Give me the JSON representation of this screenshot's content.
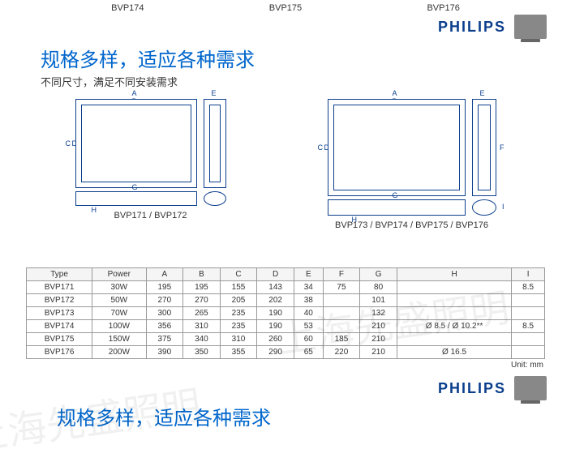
{
  "top_labels": [
    "BVP174",
    "BVP175",
    "BVP176"
  ],
  "brand": "PHILIPS",
  "headline": "规格多样，适应各种需求",
  "subhead": "不同尺寸，满足不同安装需求",
  "diagram_left_caption": "BVP171 / BVP172",
  "diagram_right_caption": "BVP173 / BVP174 / BVP175 / BVP176",
  "dims": [
    "A",
    "B",
    "C",
    "D",
    "E",
    "F",
    "G",
    "H",
    "I"
  ],
  "table": {
    "headers": [
      "Type",
      "Power",
      "A",
      "B",
      "C",
      "D",
      "E",
      "F",
      "G",
      "H",
      "I"
    ],
    "rows": [
      [
        "BVP171",
        "30W",
        "195",
        "195",
        "155",
        "143",
        "34",
        "75",
        "80",
        "",
        "8.5"
      ],
      [
        "BVP172",
        "50W",
        "270",
        "270",
        "205",
        "202",
        "38",
        "",
        "101",
        "",
        ""
      ],
      [
        "BVP173",
        "70W",
        "300",
        "265",
        "235",
        "190",
        "40",
        "",
        "132",
        "",
        ""
      ],
      [
        "BVP174",
        "100W",
        "356",
        "310",
        "235",
        "190",
        "53",
        "",
        "210",
        "Ø 8.5 / Ø 10.2**",
        "8.5"
      ],
      [
        "BVP175",
        "150W",
        "375",
        "340",
        "310",
        "260",
        "60",
        "185",
        "210",
        "",
        ""
      ],
      [
        "BVP176",
        "200W",
        "390",
        "350",
        "355",
        "290",
        "65",
        "220",
        "210",
        "Ø 16.5",
        ""
      ]
    ]
  },
  "unit_note": "Unit: mm",
  "footer_headline": "规格多样，适应各种需求",
  "watermark_text": "上海先盛照明",
  "colors": {
    "brand_blue": "#0b3e8c",
    "link_blue": "#0066cc",
    "text": "#333333",
    "border": "#999999"
  }
}
